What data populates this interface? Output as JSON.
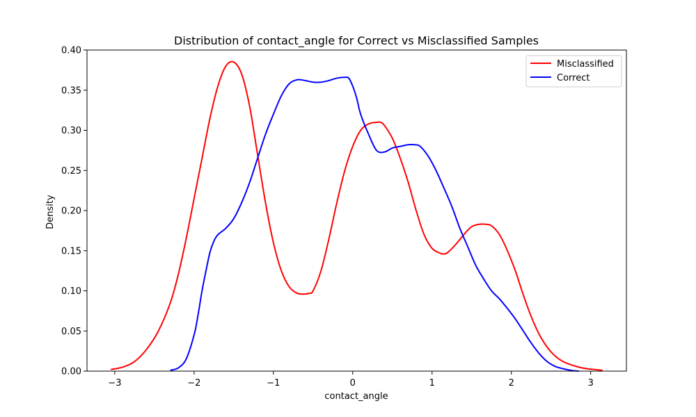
{
  "chart_data": {
    "type": "line",
    "title": "Distribution of contact_angle for Correct vs Misclassified Samples",
    "xlabel": "contact_angle",
    "ylabel": "Density",
    "xlim": [
      -3.35,
      3.45
    ],
    "ylim": [
      0,
      0.4
    ],
    "xticks": [
      -3,
      -2,
      -1,
      0,
      1,
      2,
      3
    ],
    "xtick_labels": [
      "−3",
      "−2",
      "−1",
      "0",
      "1",
      "2",
      "3"
    ],
    "yticks": [
      0,
      0.05,
      0.1,
      0.15,
      0.2,
      0.25,
      0.3,
      0.35,
      0.4
    ],
    "ytick_labels": [
      "0.00",
      "0.05",
      "0.10",
      "0.15",
      "0.20",
      "0.25",
      "0.30",
      "0.35",
      "0.40"
    ],
    "grid": false,
    "legend_position": "top-right",
    "series": [
      {
        "name": "Misclassified",
        "color": "#ff0000",
        "x": [
          -3.05,
          -2.9,
          -2.75,
          -2.6,
          -2.45,
          -2.3,
          -2.2,
          -2.1,
          -2.0,
          -1.9,
          -1.8,
          -1.7,
          -1.6,
          -1.5,
          -1.4,
          -1.3,
          -1.2,
          -1.1,
          -1.0,
          -0.9,
          -0.8,
          -0.7,
          -0.6,
          -0.55,
          -0.5,
          -0.4,
          -0.3,
          -0.2,
          -0.1,
          0.0,
          0.1,
          0.2,
          0.3,
          0.35,
          0.4,
          0.5,
          0.6,
          0.7,
          0.8,
          0.9,
          1.0,
          1.1,
          1.15,
          1.2,
          1.3,
          1.4,
          1.5,
          1.6,
          1.67,
          1.75,
          1.85,
          1.95,
          2.05,
          2.15,
          2.25,
          2.35,
          2.45,
          2.55,
          2.65,
          2.75,
          2.85,
          2.95,
          3.05,
          3.15
        ],
        "y": [
          0.002,
          0.005,
          0.012,
          0.027,
          0.05,
          0.085,
          0.12,
          0.165,
          0.215,
          0.265,
          0.315,
          0.355,
          0.38,
          0.385,
          0.37,
          0.33,
          0.27,
          0.21,
          0.16,
          0.125,
          0.105,
          0.097,
          0.096,
          0.097,
          0.1,
          0.125,
          0.165,
          0.21,
          0.25,
          0.28,
          0.3,
          0.308,
          0.31,
          0.31,
          0.306,
          0.29,
          0.265,
          0.235,
          0.2,
          0.17,
          0.153,
          0.147,
          0.146,
          0.148,
          0.158,
          0.17,
          0.18,
          0.183,
          0.183,
          0.181,
          0.17,
          0.15,
          0.125,
          0.095,
          0.068,
          0.046,
          0.03,
          0.019,
          0.012,
          0.008,
          0.005,
          0.003,
          0.002,
          0.001
        ]
      },
      {
        "name": "Correct",
        "color": "#0000ff",
        "x": [
          -2.3,
          -2.2,
          -2.1,
          -2.0,
          -1.95,
          -1.9,
          -1.85,
          -1.8,
          -1.75,
          -1.7,
          -1.6,
          -1.5,
          -1.4,
          -1.3,
          -1.2,
          -1.1,
          -1.0,
          -0.9,
          -0.8,
          -0.7,
          -0.6,
          -0.5,
          -0.4,
          -0.3,
          -0.2,
          -0.1,
          -0.05,
          0.0,
          0.05,
          0.1,
          0.2,
          0.3,
          0.4,
          0.5,
          0.6,
          0.7,
          0.78,
          0.85,
          0.95,
          1.05,
          1.15,
          1.25,
          1.35,
          1.45,
          1.55,
          1.65,
          1.75,
          1.85,
          1.95,
          2.05,
          2.15,
          2.25,
          2.35,
          2.45,
          2.55,
          2.65,
          2.75,
          2.85
        ],
        "y": [
          0.001,
          0.004,
          0.015,
          0.045,
          0.07,
          0.1,
          0.125,
          0.148,
          0.162,
          0.17,
          0.178,
          0.19,
          0.21,
          0.235,
          0.265,
          0.295,
          0.32,
          0.343,
          0.358,
          0.363,
          0.362,
          0.36,
          0.36,
          0.362,
          0.365,
          0.366,
          0.365,
          0.355,
          0.34,
          0.32,
          0.295,
          0.275,
          0.273,
          0.278,
          0.28,
          0.282,
          0.282,
          0.28,
          0.268,
          0.25,
          0.228,
          0.205,
          0.178,
          0.155,
          0.132,
          0.115,
          0.1,
          0.09,
          0.078,
          0.065,
          0.05,
          0.035,
          0.022,
          0.012,
          0.006,
          0.003,
          0.001,
          0.0
        ]
      }
    ]
  }
}
